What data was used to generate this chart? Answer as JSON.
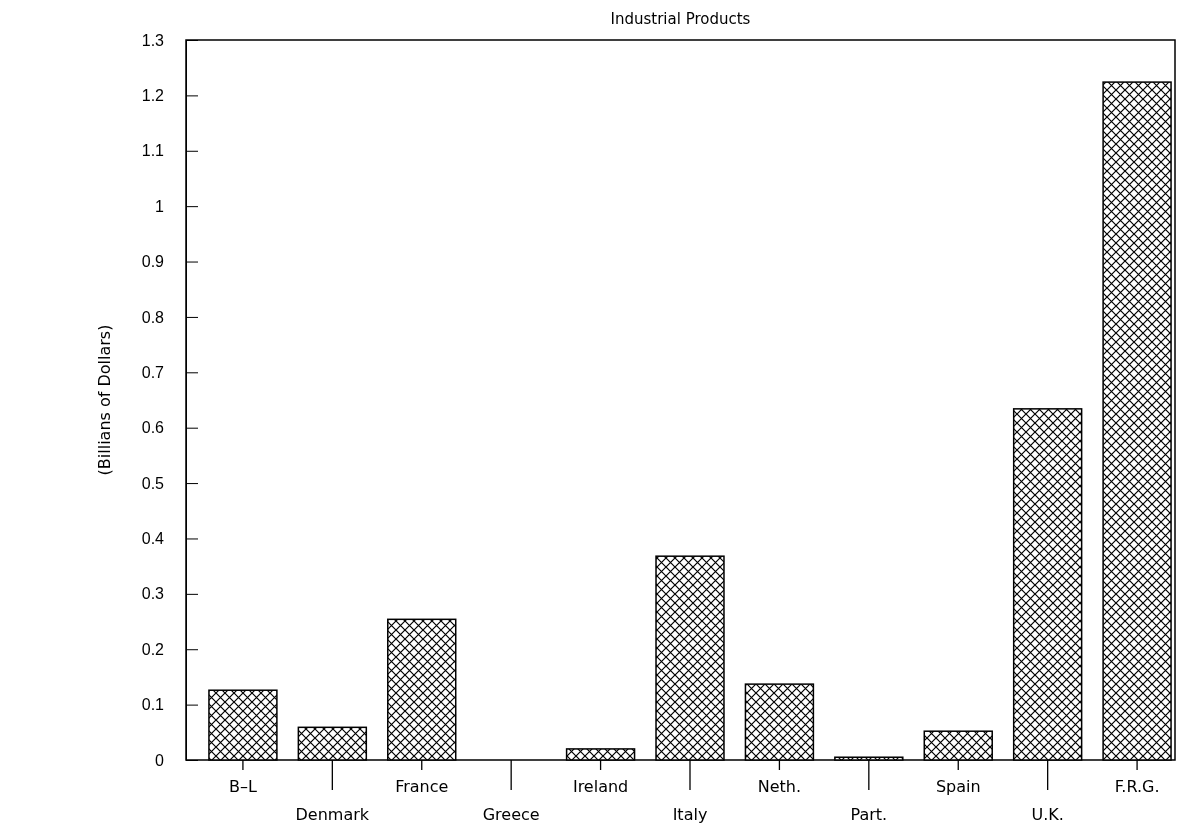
{
  "chart_data": {
    "type": "bar",
    "title": "Industrial Products",
    "ylabel": "(Billians of Dollars)",
    "categories": [
      "B–L",
      "Denmark",
      "France",
      "Greece",
      "Ireland",
      "Italy",
      "Neth.",
      "Part.",
      "Spain",
      "U.K.",
      "F.R.G."
    ],
    "values": [
      0.126,
      0.059,
      0.254,
      0,
      0.02,
      0.368,
      0.137,
      0.005,
      0.052,
      0.634,
      1.224
    ],
    "color": "#000000",
    "ylim": [
      0,
      1.3
    ],
    "yticks": [
      0,
      0.1,
      0.2,
      0.3,
      0.4,
      0.5,
      0.6,
      0.7,
      0.8,
      0.9,
      1,
      1.1,
      1.2,
      1.3
    ],
    "grid": false
  }
}
